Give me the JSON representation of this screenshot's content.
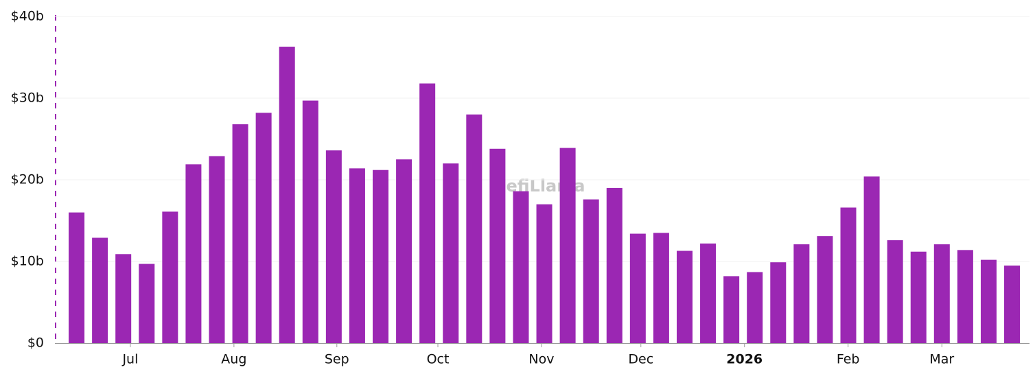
{
  "chart_data": {
    "type": "bar",
    "watermark": "DefiLlama",
    "categories": [
      null,
      null,
      null,
      null,
      null,
      null,
      null,
      null,
      null,
      null,
      null,
      null,
      null,
      null,
      null,
      null,
      null,
      null,
      null,
      null,
      null,
      null,
      null,
      null,
      null,
      null,
      null,
      null,
      null,
      null,
      null,
      null,
      null,
      null,
      null,
      null,
      null,
      null,
      null,
      null,
      null
    ],
    "values": [
      16.0,
      12.9,
      10.9,
      9.7,
      16.1,
      21.9,
      22.9,
      26.8,
      28.2,
      36.3,
      29.7,
      23.6,
      21.4,
      21.2,
      22.5,
      31.8,
      22.0,
      28.0,
      23.8,
      18.6,
      17.0,
      23.9,
      17.6,
      19.0,
      13.4,
      13.5,
      11.3,
      12.2,
      8.2,
      8.7,
      9.9,
      12.1,
      13.1,
      16.6,
      20.4,
      12.6,
      11.2,
      12.1,
      11.4,
      10.2,
      9.5
    ],
    "color": "#9b27b3",
    "ylim": [
      0,
      40
    ],
    "yticks": [
      {
        "value": 0,
        "label": "$0"
      },
      {
        "value": 10,
        "label": "$10b"
      },
      {
        "value": 20,
        "label": "$20b"
      },
      {
        "value": 30,
        "label": "$30b"
      },
      {
        "value": 40,
        "label": "$40b"
      }
    ],
    "xticks": [
      {
        "value": 2.3,
        "label": "Jul"
      },
      {
        "value": 6.73,
        "label": "Aug"
      },
      {
        "value": 11.13,
        "label": "Sep"
      },
      {
        "value": 15.45,
        "label": "Oct"
      },
      {
        "value": 19.88,
        "label": "Nov"
      },
      {
        "value": 24.13,
        "label": "Dec"
      },
      {
        "value": 28.56,
        "label": "2026",
        "bold": true
      },
      {
        "value": 32.99,
        "label": "Feb"
      },
      {
        "value": 37.0,
        "label": "Mar"
      }
    ],
    "grid": true
  }
}
